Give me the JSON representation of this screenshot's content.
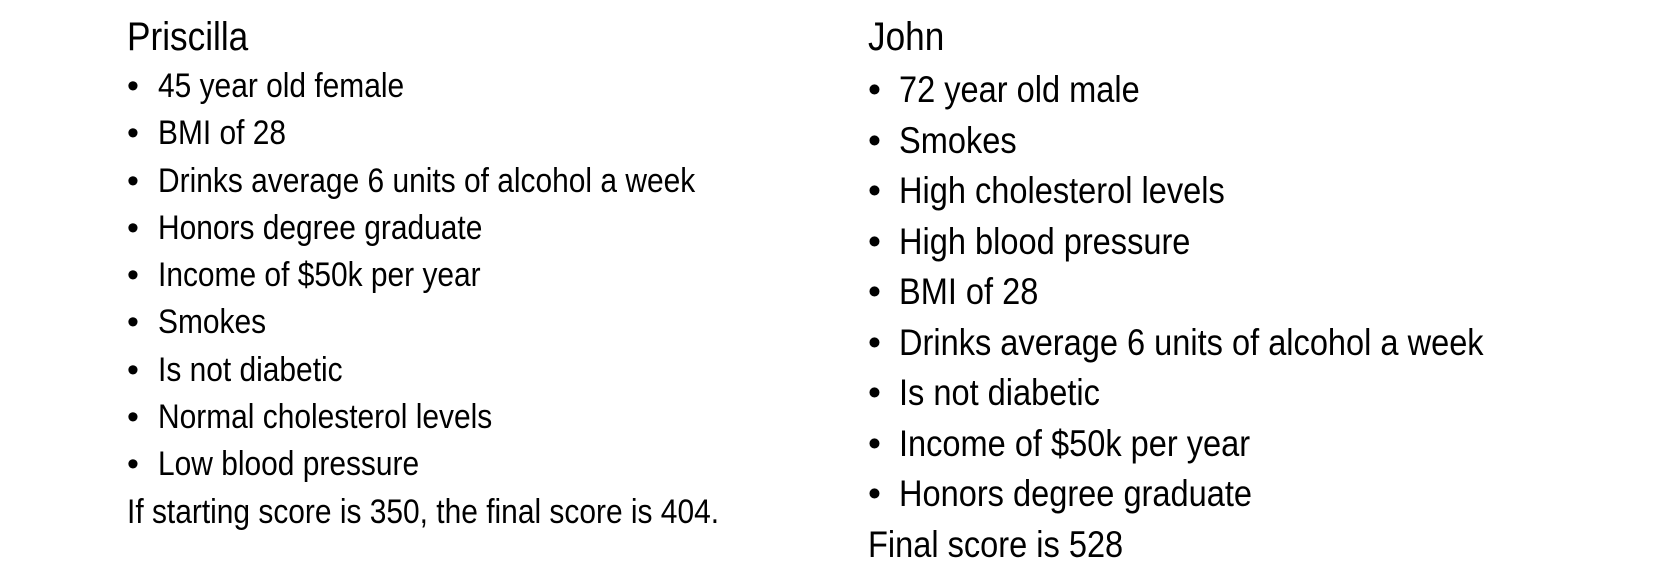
{
  "left": {
    "name": "Priscilla",
    "items": [
      "45 year old female",
      "BMI of 28",
      "Drinks average 6 units of alcohol a week",
      "Honors degree graduate",
      "Income of $50k per year",
      "Smokes",
      "Is not diabetic",
      "Normal cholesterol levels",
      "Low blood pressure"
    ],
    "final": "If starting score is 350, the final score is 404."
  },
  "right": {
    "name": "John",
    "items": [
      "72 year old male",
      "Smokes",
      "High cholesterol levels",
      "High blood pressure",
      "BMI of 28",
      "Drinks average 6 units of alcohol a week",
      "Is not diabetic",
      "Income of $50k per year",
      "Honors degree graduate"
    ],
    "final": "Final score is 528"
  },
  "bullet_glyph": "•"
}
